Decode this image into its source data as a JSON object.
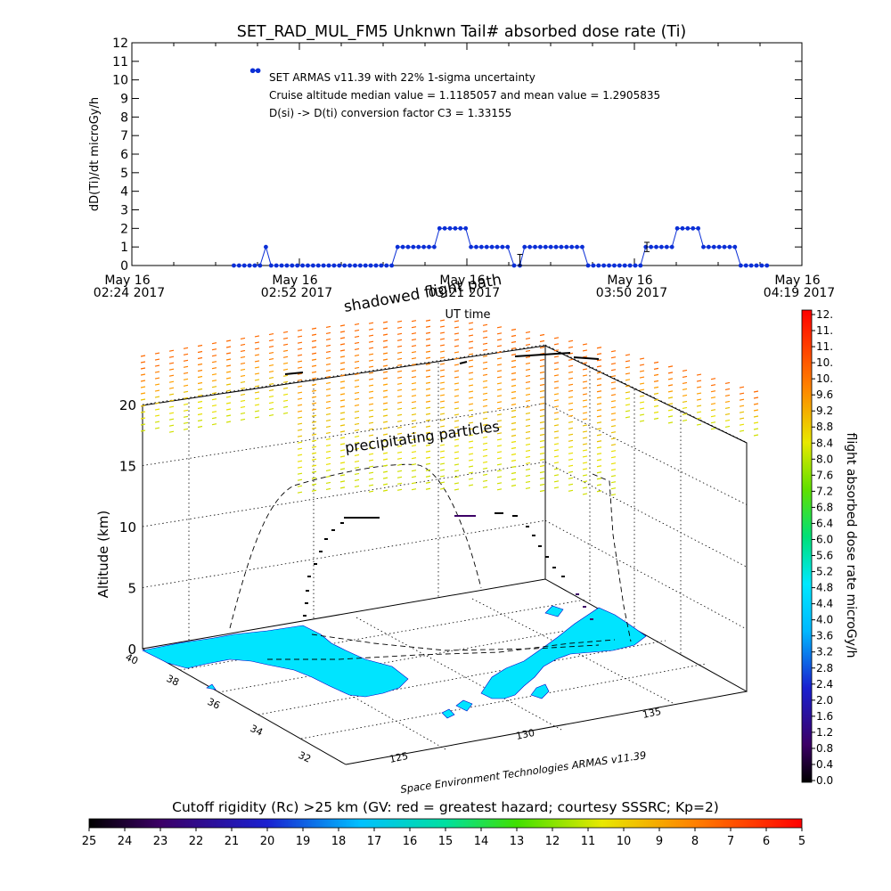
{
  "chart_data": [
    {
      "type": "line",
      "title": "SET_RAD_MUL_FM5 Unknwn Tail#  absorbed dose rate (Ti)",
      "ylabel": "dD(Ti)/dt microGy/h",
      "xlabel": "UT time",
      "ylim": [
        0,
        12
      ],
      "yticks": [
        "0",
        "1",
        "2",
        "3",
        "4",
        "5",
        "6",
        "7",
        "8",
        "9",
        "10",
        "11",
        "12"
      ],
      "xticks": [
        {
          "date": "May 16",
          "time": "02:24 2017"
        },
        {
          "date": "May 16",
          "time": "02:52 2017"
        },
        {
          "date": "May 16",
          "time": "03:21 2017"
        },
        {
          "date": "May 16",
          "time": "03:50 2017"
        },
        {
          "date": "May 16",
          "time": "04:19 2017"
        }
      ],
      "x_unit": "minutes after 02:24 UT",
      "annotations": [
        "SET ARMAS v11.39 with 22% 1-sigma uncertainty",
        "Cruise altitude median value = 1.1185057 and mean value = 1.2905835",
        "D(si) -> D(ti) conversion factor C3 = 1.33155"
      ],
      "series": [
        {
          "name": "SET ARMAS v11.39",
          "color": "#0b2fd6",
          "values": [
            [
              17.5,
              0
            ],
            [
              18.4,
              0
            ],
            [
              19.3,
              0
            ],
            [
              20.2,
              0
            ],
            [
              21.1,
              0
            ],
            [
              22.0,
              0
            ],
            [
              23.0,
              1
            ],
            [
              23.9,
              0
            ],
            [
              24.8,
              0
            ],
            [
              25.7,
              0
            ],
            [
              26.6,
              0
            ],
            [
              27.5,
              0
            ],
            [
              28.4,
              0
            ],
            [
              29.3,
              0
            ],
            [
              30.2,
              0
            ],
            [
              31.1,
              0
            ],
            [
              32.0,
              0
            ],
            [
              32.9,
              0
            ],
            [
              33.8,
              0
            ],
            [
              34.7,
              0
            ],
            [
              35.6,
              0
            ],
            [
              36.5,
              0
            ],
            [
              37.4,
              0
            ],
            [
              38.3,
              0
            ],
            [
              39.2,
              0
            ],
            [
              40.1,
              0
            ],
            [
              41.0,
              0
            ],
            [
              41.9,
              0
            ],
            [
              42.8,
              0
            ],
            [
              43.7,
              0
            ],
            [
              44.6,
              0
            ],
            [
              45.6,
              1
            ],
            [
              46.5,
              1
            ],
            [
              47.4,
              1
            ],
            [
              48.3,
              1
            ],
            [
              49.2,
              1
            ],
            [
              50.1,
              1
            ],
            [
              51.0,
              1
            ],
            [
              51.9,
              1
            ],
            [
              52.8,
              2
            ],
            [
              53.7,
              2
            ],
            [
              54.6,
              2
            ],
            [
              55.5,
              2
            ],
            [
              56.4,
              2
            ],
            [
              57.3,
              2
            ],
            [
              58.2,
              1
            ],
            [
              59.1,
              1
            ],
            [
              60.0,
              1
            ],
            [
              60.9,
              1
            ],
            [
              61.8,
              1
            ],
            [
              62.7,
              1
            ],
            [
              63.6,
              1
            ],
            [
              64.5,
              1
            ],
            [
              65.6,
              0
            ],
            [
              66.6,
              0
            ],
            [
              67.4,
              1
            ],
            [
              68.3,
              1
            ],
            [
              69.2,
              1
            ],
            [
              70.1,
              1
            ],
            [
              71.0,
              1
            ],
            [
              71.9,
              1
            ],
            [
              72.8,
              1
            ],
            [
              73.7,
              1
            ],
            [
              74.6,
              1
            ],
            [
              75.5,
              1
            ],
            [
              76.4,
              1
            ],
            [
              77.3,
              1
            ],
            [
              78.3,
              0
            ],
            [
              79.2,
              0
            ],
            [
              80.1,
              0
            ],
            [
              81.0,
              0
            ],
            [
              81.9,
              0
            ],
            [
              82.8,
              0
            ],
            [
              83.7,
              0
            ],
            [
              84.6,
              0
            ],
            [
              85.5,
              0
            ],
            [
              86.4,
              0
            ],
            [
              87.3,
              0
            ],
            [
              88.2,
              1
            ],
            [
              89.1,
              1
            ],
            [
              90.0,
              1
            ],
            [
              90.9,
              1
            ],
            [
              91.8,
              1
            ],
            [
              92.7,
              1
            ],
            [
              93.6,
              2
            ],
            [
              94.5,
              2
            ],
            [
              95.4,
              2
            ],
            [
              96.3,
              2
            ],
            [
              97.2,
              2
            ],
            [
              98.1,
              1
            ],
            [
              99.0,
              1
            ],
            [
              99.9,
              1
            ],
            [
              100.8,
              1
            ],
            [
              101.7,
              1
            ],
            [
              102.6,
              1
            ],
            [
              103.5,
              1
            ],
            [
              104.5,
              0
            ],
            [
              105.4,
              0
            ],
            [
              106.3,
              0
            ],
            [
              107.2,
              0
            ],
            [
              108.1,
              0
            ],
            [
              109.0,
              0
            ]
          ]
        }
      ],
      "legend_marker": {
        "x": 21.2,
        "y": 10.5
      },
      "error_bars": [
        {
          "x": 66.6,
          "y": 0.3,
          "err": 0.3
        },
        {
          "x": 88.4,
          "y": 1.0,
          "err": 0.25
        }
      ]
    },
    {
      "type": "scatter",
      "subtype": "3d-trajectory",
      "zlabel": "Altitude (km)",
      "zticks": [
        "0",
        "5",
        "10",
        "15",
        "20"
      ],
      "lat_ticks": [
        "40",
        "38",
        "36",
        "34",
        "32"
      ],
      "lon_ticks": [
        "125",
        "130",
        "135"
      ],
      "labels": [
        "shadowed flight path",
        "precipitating particles"
      ],
      "credit": "Space Environment Technologies ARMAS v11.39",
      "land_color": "#00e4ff"
    },
    {
      "type": "heatmap",
      "subtype": "colorbar",
      "ylabel": "flight absorbed dose rate microGy/h",
      "ticks": [
        "12.",
        "11.",
        "11.",
        "10.",
        "10.",
        "9.6",
        "9.2",
        "8.8",
        "8.4",
        "8.0",
        "7.6",
        "7.2",
        "6.8",
        "6.4",
        "6.0",
        "5.6",
        "5.2",
        "4.8",
        "4.4",
        "4.0",
        "3.6",
        "3.2",
        "2.8",
        "2.4",
        "2.0",
        "1.6",
        "1.2",
        "0.8",
        "0.4",
        "0.0"
      ]
    },
    {
      "type": "heatmap",
      "subtype": "colorbar",
      "title": "Cutoff rigidity (Rc) >25 km (GV: red = greatest hazard; courtesy SSSRC; Kp=2)",
      "ticks": [
        "25",
        "24",
        "23",
        "22",
        "21",
        "20",
        "19",
        "18",
        "17",
        "16",
        "15",
        "14",
        "13",
        "12",
        "11",
        "10",
        "9",
        "8",
        "7",
        "6",
        "5"
      ]
    }
  ]
}
